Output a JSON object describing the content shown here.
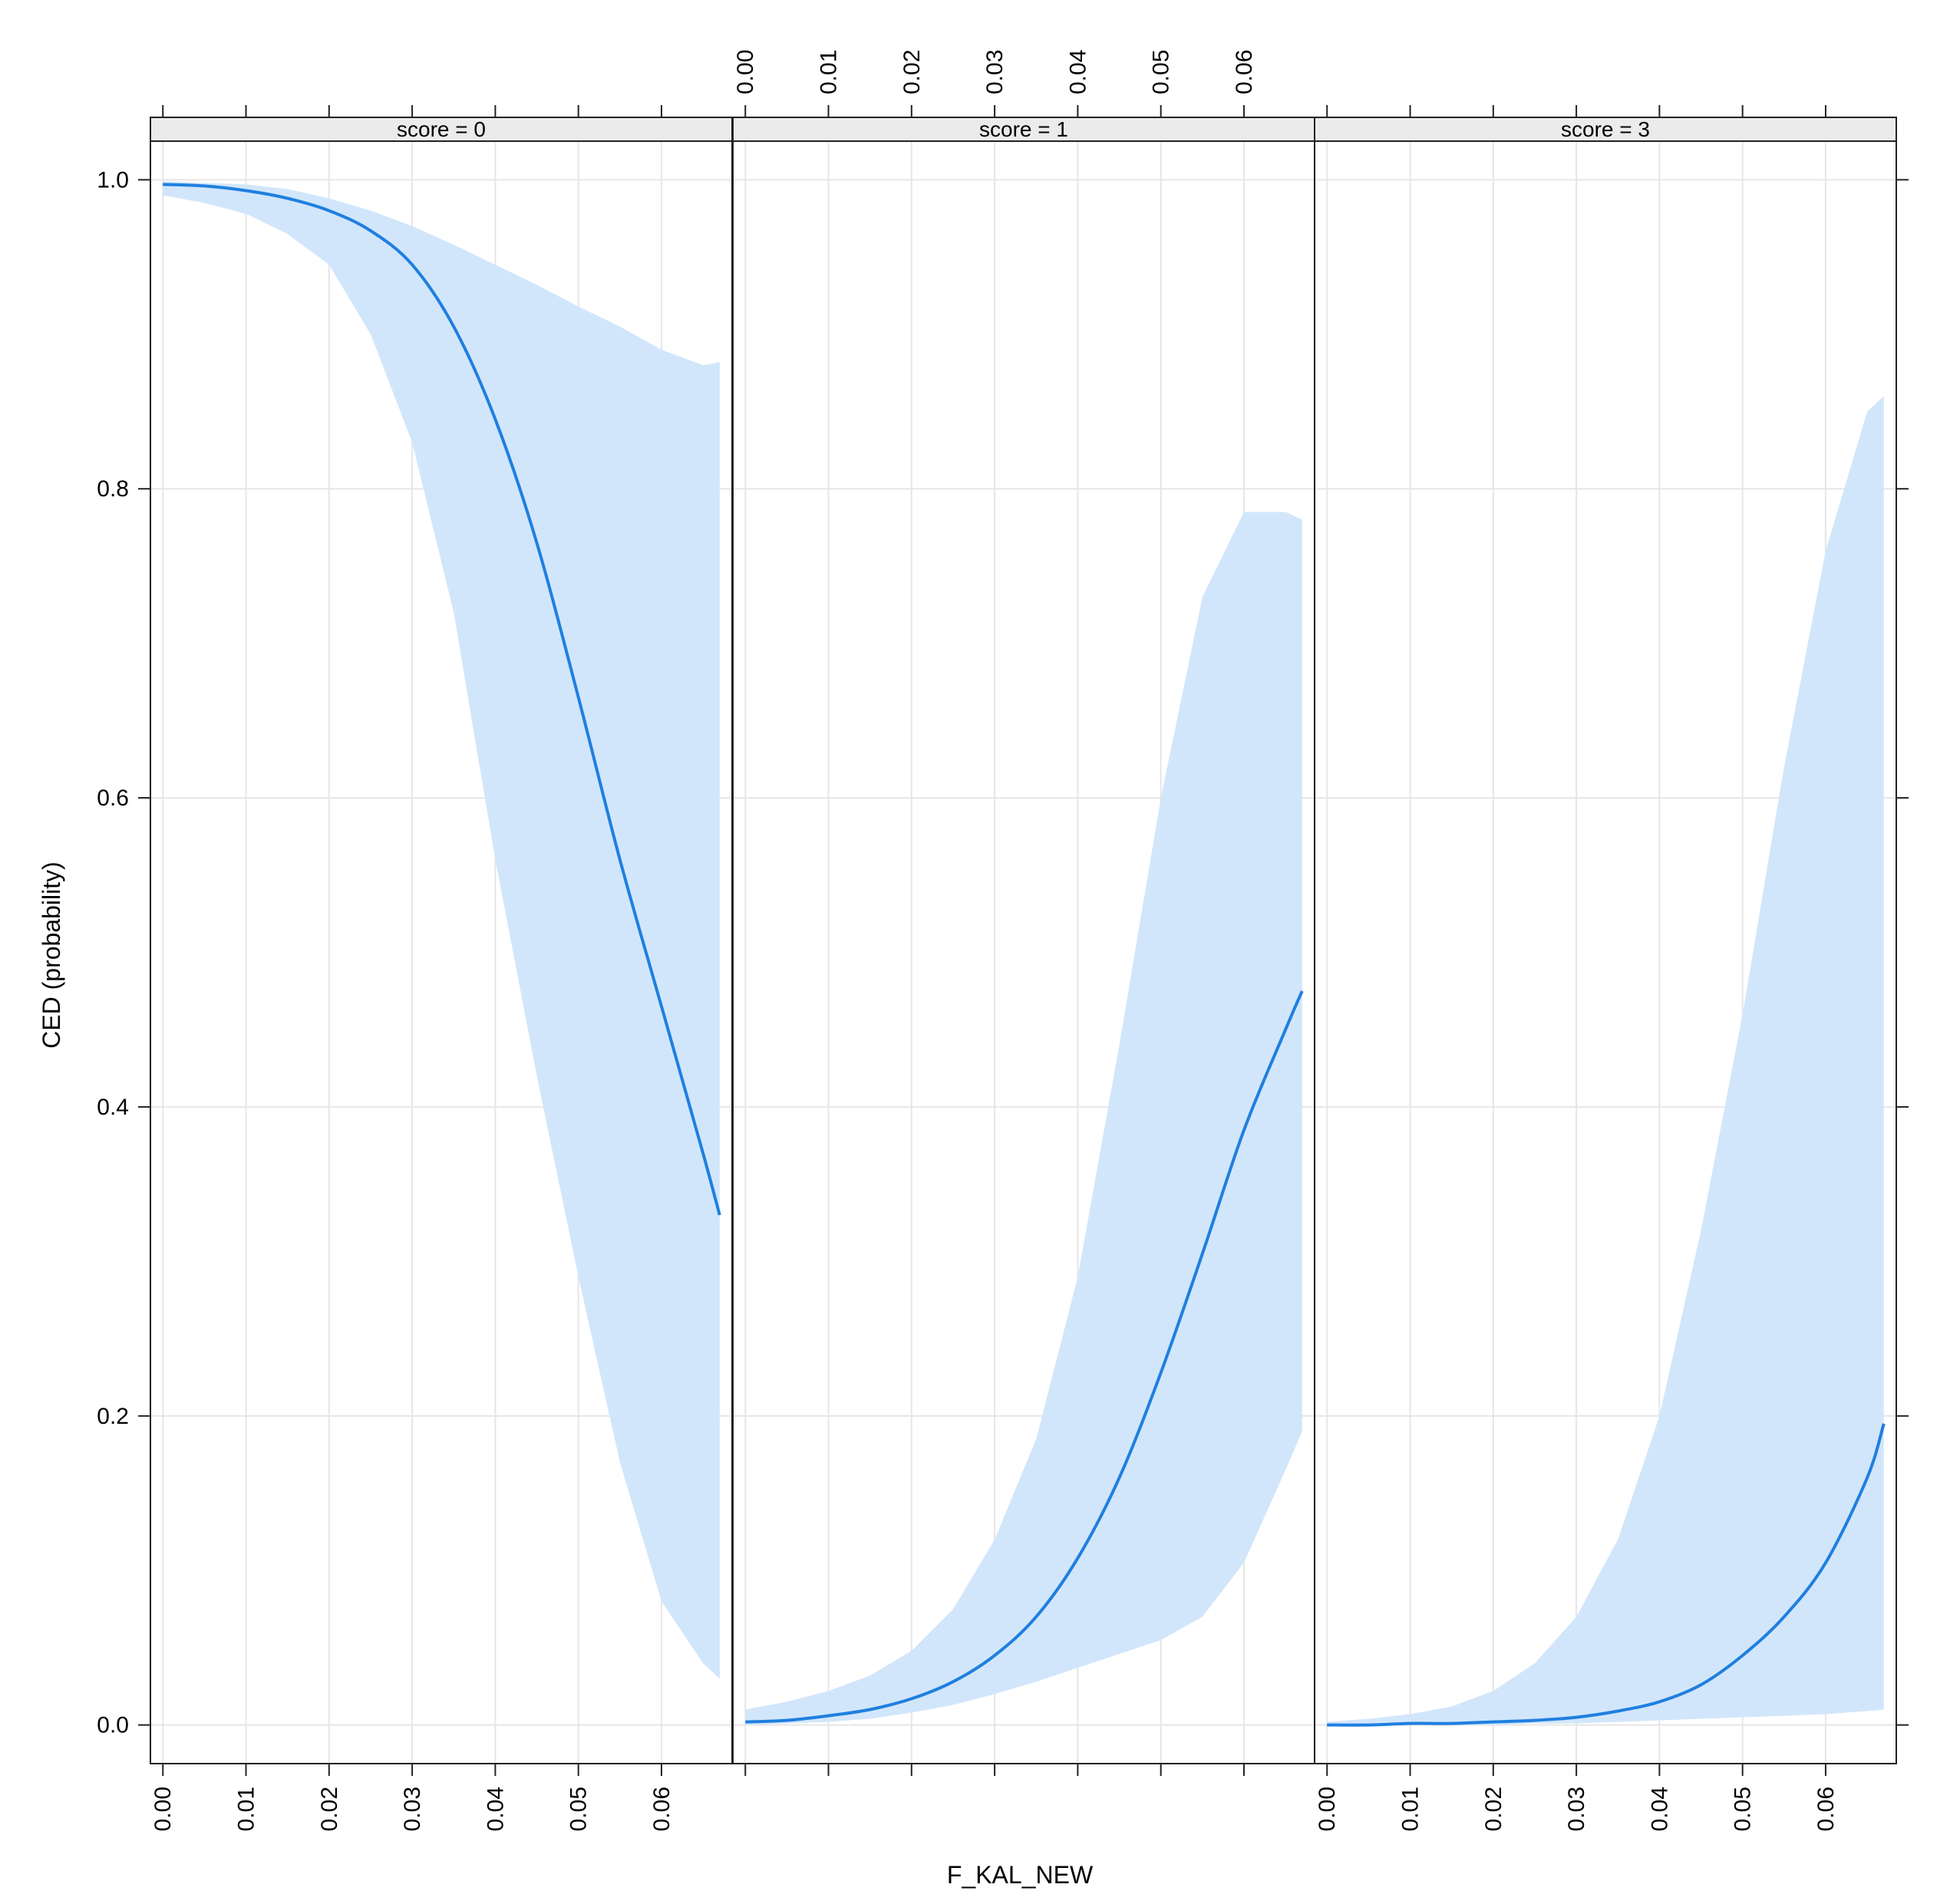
{
  "chart_data": {
    "type": "line",
    "xlabel": "F_KAL_NEW",
    "ylabel": "CED (probability)",
    "xlim": [
      -0.0015,
      0.0685
    ],
    "ylim": [
      -0.025,
      1.025
    ],
    "x_ticks": [
      "0.00",
      "0.01",
      "0.02",
      "0.03",
      "0.04",
      "0.05",
      "0.06"
    ],
    "y_ticks": [
      "0.0",
      "0.2",
      "0.4",
      "0.6",
      "0.8",
      "1.0"
    ],
    "grid": true,
    "colors": {
      "line": "#1f7fe0",
      "band": "#d2e6fb",
      "grid": "#e6e6e6",
      "strip": "#ebebeb",
      "frame": "#222222"
    },
    "panels": [
      {
        "strip_label": "score = 0",
        "x": [
          0.0,
          0.005,
          0.01,
          0.015,
          0.02,
          0.025,
          0.03,
          0.035,
          0.04,
          0.045,
          0.05,
          0.055,
          0.06,
          0.065,
          0.067
        ],
        "fit": [
          0.997,
          0.996,
          0.993,
          0.988,
          0.98,
          0.967,
          0.945,
          0.905,
          0.845,
          0.765,
          0.665,
          0.56,
          0.465,
          0.37,
          0.33
        ],
        "lower": [
          0.99,
          0.985,
          0.978,
          0.965,
          0.945,
          0.9,
          0.83,
          0.72,
          0.56,
          0.42,
          0.29,
          0.17,
          0.08,
          0.04,
          0.03
        ],
        "upper": [
          0.999,
          0.998,
          0.997,
          0.994,
          0.988,
          0.98,
          0.97,
          0.958,
          0.945,
          0.932,
          0.918,
          0.905,
          0.89,
          0.88,
          0.882
        ]
      },
      {
        "strip_label": "score = 1",
        "x": [
          0.0,
          0.005,
          0.01,
          0.015,
          0.02,
          0.025,
          0.03,
          0.035,
          0.04,
          0.045,
          0.05,
          0.055,
          0.06,
          0.065,
          0.067
        ],
        "fit": [
          0.002,
          0.003,
          0.006,
          0.01,
          0.017,
          0.028,
          0.045,
          0.07,
          0.108,
          0.16,
          0.228,
          0.305,
          0.385,
          0.45,
          0.475
        ],
        "lower": [
          0.0,
          0.001,
          0.002,
          0.004,
          0.008,
          0.013,
          0.02,
          0.028,
          0.037,
          0.046,
          0.055,
          0.07,
          0.105,
          0.165,
          0.19
        ],
        "upper": [
          0.01,
          0.015,
          0.022,
          0.032,
          0.048,
          0.075,
          0.12,
          0.185,
          0.29,
          0.44,
          0.6,
          0.73,
          0.785,
          0.785,
          0.78
        ]
      },
      {
        "strip_label": "score = 3",
        "x": [
          0.0,
          0.005,
          0.01,
          0.015,
          0.02,
          0.025,
          0.03,
          0.035,
          0.04,
          0.045,
          0.05,
          0.055,
          0.06,
          0.065,
          0.067
        ],
        "fit": [
          0.0,
          0.0,
          0.001,
          0.001,
          0.002,
          0.003,
          0.005,
          0.009,
          0.015,
          0.026,
          0.045,
          0.07,
          0.105,
          0.16,
          0.195
        ],
        "lower": [
          0.0,
          0.0,
          0.0,
          0.0,
          0.0,
          0.001,
          0.001,
          0.002,
          0.003,
          0.004,
          0.005,
          0.006,
          0.007,
          0.009,
          0.01
        ],
        "upper": [
          0.002,
          0.004,
          0.007,
          0.012,
          0.022,
          0.04,
          0.07,
          0.12,
          0.2,
          0.32,
          0.46,
          0.62,
          0.76,
          0.85,
          0.86
        ]
      }
    ]
  }
}
